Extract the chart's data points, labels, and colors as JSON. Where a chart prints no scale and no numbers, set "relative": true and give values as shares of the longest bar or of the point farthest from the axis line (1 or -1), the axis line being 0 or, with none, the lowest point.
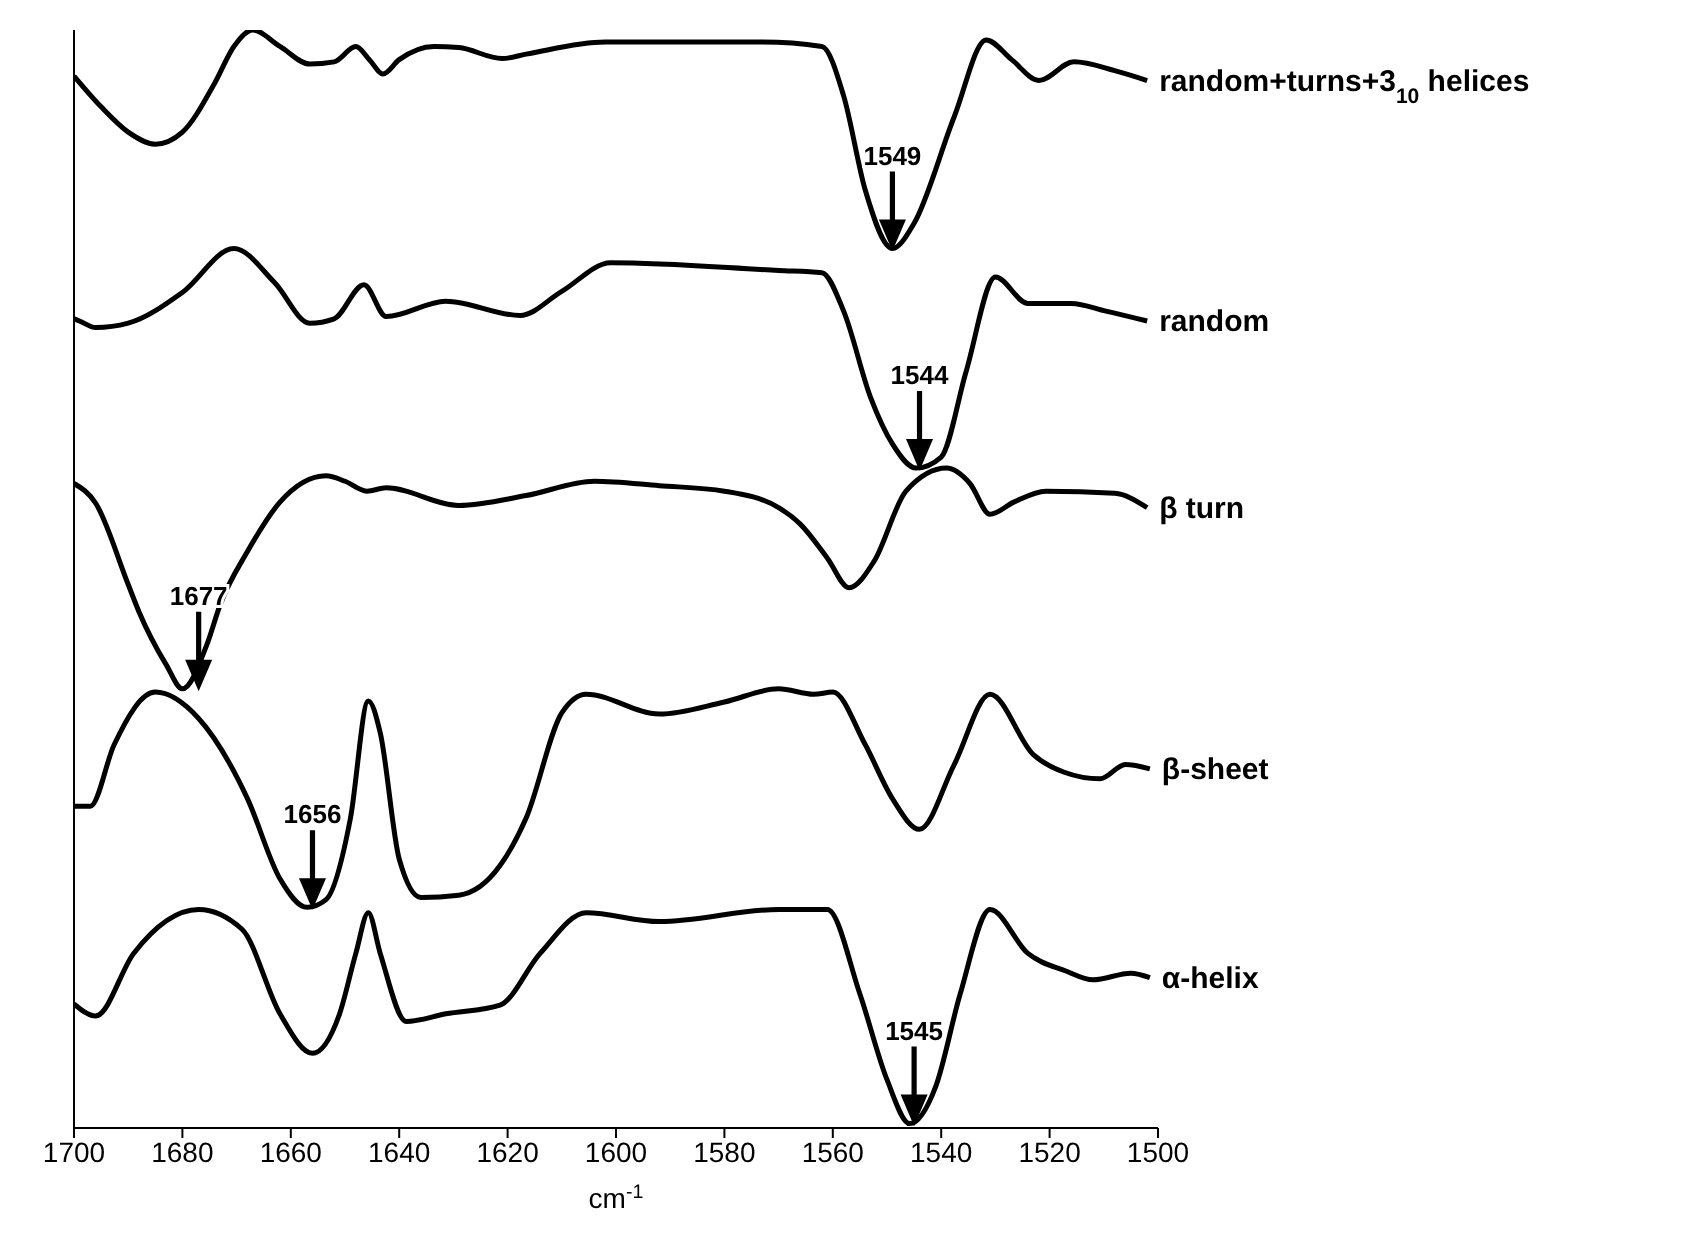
{
  "chart_data": {
    "type": "line",
    "xlabel": "cm$^{-1}$",
    "xlim": [
      1700,
      1500
    ],
    "xticks": [
      1700,
      1680,
      1660,
      1640,
      1620,
      1600,
      1580,
      1560,
      1540,
      1520,
      1500
    ],
    "relative": true,
    "legend": false,
    "grid": false,
    "marker": "none",
    "line_style": "solid",
    "annotations": [
      {
        "text": "1549",
        "x": 1549,
        "y": 0.801
      },
      {
        "text": "1544",
        "x": 1544,
        "y": 0.601
      },
      {
        "text": "1677",
        "x": 1677,
        "y": 0.4
      },
      {
        "text": "1656",
        "x": 1656,
        "y": 0.201
      },
      {
        "text": "1545",
        "x": 1545,
        "y": 0.004
      }
    ],
    "series": [
      {
        "name": "random+turns+3$_{10}$ helices",
        "color": "#000000",
        "x": [
          1700,
          1695,
          1690,
          1685,
          1680,
          1674,
          1670.5,
          1667,
          1662,
          1656.5,
          1652,
          1648,
          1645.5,
          1643,
          1640,
          1633.6,
          1629,
          1621,
          1616.6,
          1602,
          1573,
          1562,
          1558,
          1554,
          1549,
          1545,
          1537.6,
          1531.7,
          1527,
          1522,
          1515.5,
          1508,
          1502
        ],
        "values": [
          0.958,
          0.93,
          0.907,
          0.896,
          0.907,
          0.952,
          0.985,
          1,
          0.985,
          0.969,
          0.971,
          0.985,
          0.973,
          0.96,
          0.973,
          0.985,
          0.984,
          0.974,
          0.978,
          0.989,
          0.989,
          0.985,
          0.94,
          0.854,
          0.801,
          0.824,
          0.921,
          0.991,
          0.973,
          0.954,
          0.971,
          0.963,
          0.954
        ]
      },
      {
        "name": "random",
        "color": "#000000",
        "x": [
          1700,
          1699,
          1696,
          1690,
          1680,
          1670.5,
          1663,
          1656.5,
          1652,
          1646.5,
          1642.4,
          1631.4,
          1617.7,
          1610,
          1601,
          1570,
          1562,
          1558,
          1553,
          1549,
          1544.6,
          1540,
          1535.4,
          1530,
          1524,
          1516,
          1509.6,
          1502
        ],
        "values": [
          0.737,
          0.735,
          0.729,
          0.733,
          0.761,
          0.801,
          0.77,
          0.733,
          0.737,
          0.768,
          0.739,
          0.753,
          0.74,
          0.762,
          0.788,
          0.781,
          0.779,
          0.744,
          0.665,
          0.623,
          0.601,
          0.611,
          0.689,
          0.775,
          0.751,
          0.751,
          0.744,
          0.735
        ]
      },
      {
        "name": "β turn",
        "color": "#000000",
        "x": [
          1700,
          1696,
          1690,
          1688,
          1683,
          1680,
          1675.5,
          1673,
          1668,
          1662,
          1653.5,
          1650,
          1646,
          1642.4,
          1629,
          1616.6,
          1604,
          1592,
          1580,
          1570,
          1566,
          1561,
          1557,
          1552.4,
          1546.5,
          1539,
          1534.7,
          1531,
          1526.6,
          1520.7,
          1508,
          1502
        ],
        "values": [
          0.587,
          0.569,
          0.495,
          0.47,
          0.422,
          0.4,
          0.44,
          0.477,
          0.525,
          0.57,
          0.594,
          0.589,
          0.58,
          0.583,
          0.567,
          0.576,
          0.589,
          0.585,
          0.58,
          0.565,
          0.55,
          0.519,
          0.492,
          0.516,
          0.58,
          0.601,
          0.587,
          0.559,
          0.57,
          0.58,
          0.578,
          0.565
        ]
      },
      {
        "name": "β-sheet",
        "color": "#000000",
        "x": [
          1700,
          1697,
          1692.6,
          1685,
          1677,
          1668,
          1662,
          1657,
          1653.5,
          1649,
          1645.7,
          1643.5,
          1640,
          1636,
          1629,
          1621.4,
          1616.6,
          1610,
          1605.5,
          1592,
          1580,
          1570,
          1563.5,
          1560,
          1554,
          1549,
          1544,
          1537.6,
          1531,
          1523,
          1517.3,
          1510.7,
          1506,
          1501.5
        ],
        "values": [
          0.293,
          0.293,
          0.349,
          0.397,
          0.373,
          0.3,
          0.227,
          0.201,
          0.208,
          0.282,
          0.389,
          0.36,
          0.245,
          0.21,
          0.212,
          0.239,
          0.282,
          0.378,
          0.395,
          0.377,
          0.388,
          0.4,
          0.395,
          0.397,
          0.349,
          0.3,
          0.272,
          0.331,
          0.395,
          0.34,
          0.324,
          0.318,
          0.331,
          0.327
        ]
      },
      {
        "name": "α-helix",
        "color": "#000000",
        "x": [
          1700,
          1696,
          1689,
          1677,
          1669,
          1662,
          1656,
          1651,
          1648,
          1645.7,
          1643.5,
          1638.7,
          1631.4,
          1621.4,
          1614,
          1605.5,
          1592,
          1570,
          1561,
          1555,
          1550,
          1545.8,
          1541,
          1536.5,
          1531,
          1524,
          1517,
          1512,
          1505,
          1501.5
        ],
        "values": [
          0.113,
          0.102,
          0.159,
          0.199,
          0.181,
          0.104,
          0.068,
          0.104,
          0.159,
          0.196,
          0.159,
          0.097,
          0.104,
          0.112,
          0.159,
          0.196,
          0.188,
          0.199,
          0.199,
          0.122,
          0.044,
          0.004,
          0.038,
          0.122,
          0.199,
          0.159,
          0.143,
          0.135,
          0.141,
          0.137
        ]
      }
    ]
  }
}
